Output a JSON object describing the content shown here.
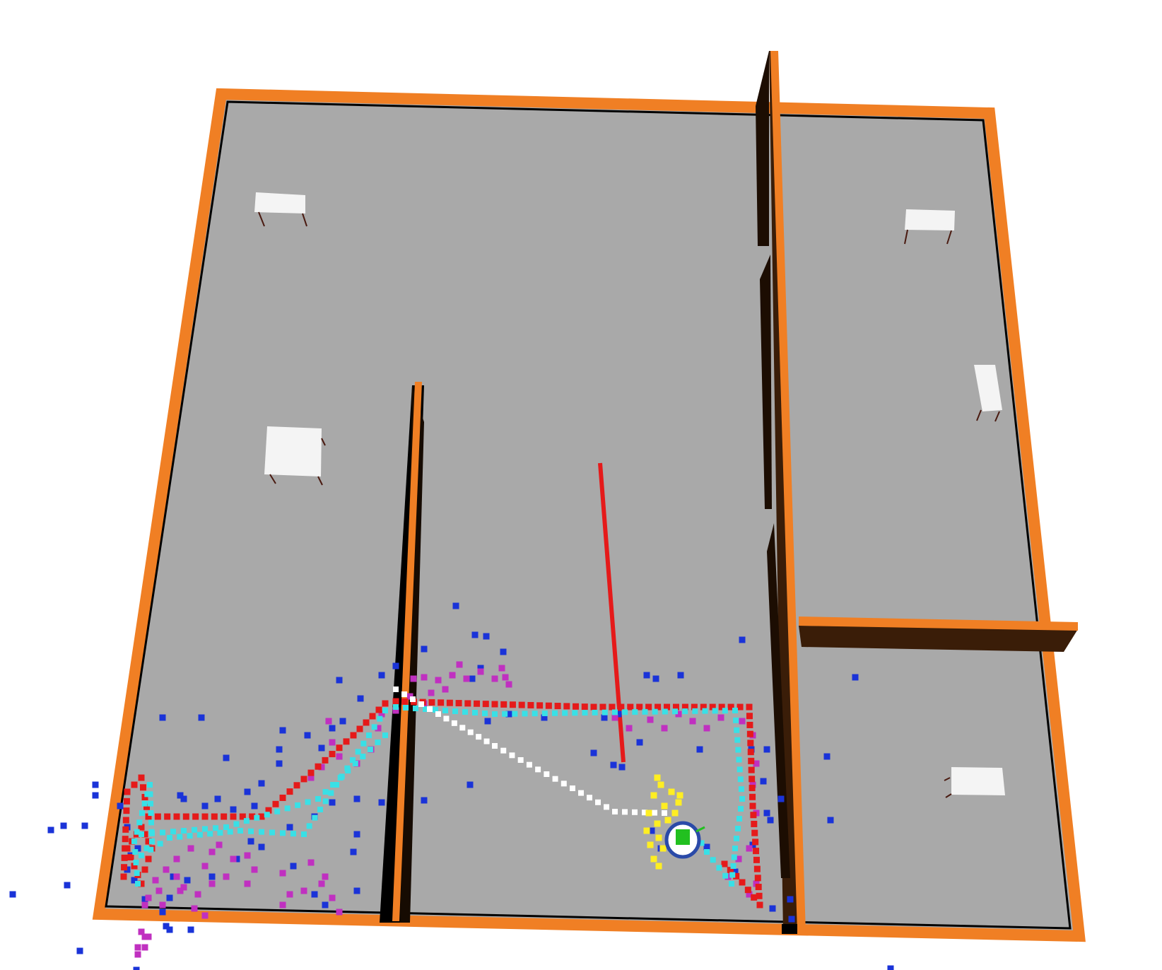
{
  "viewer": {
    "name": "",
    "background": "#ffffff"
  },
  "colors": {
    "floor": "#a9a9a9",
    "wall_top": "#f07f24",
    "wall_side": "#3a1d08",
    "wall_shadow": "#000000",
    "table": "#f4f4f4",
    "table_leg": "#4a1a10",
    "laser_hits": "#1a33d8",
    "particles": "#c030c0",
    "ground_truth_path": "#e51a1a",
    "estimated_path": "#39e0e6",
    "odometry_path": "#ffffff",
    "goal_marker": "#ffee22",
    "robot_body": "#2a4aa8",
    "robot_core": "#22c020",
    "heading_arrow": "#e51a1a"
  },
  "legend_markers": [
    {
      "id": "ground-truth",
      "icon": "red-square-marker"
    },
    {
      "id": "estimate",
      "icon": "cyan-square-marker"
    },
    {
      "id": "odometry",
      "icon": "white-square-marker"
    },
    {
      "id": "particles",
      "icon": "magenta-square-marker"
    },
    {
      "id": "laser",
      "icon": "blue-square-marker"
    },
    {
      "id": "goal",
      "icon": "yellow-square-marker"
    }
  ]
}
